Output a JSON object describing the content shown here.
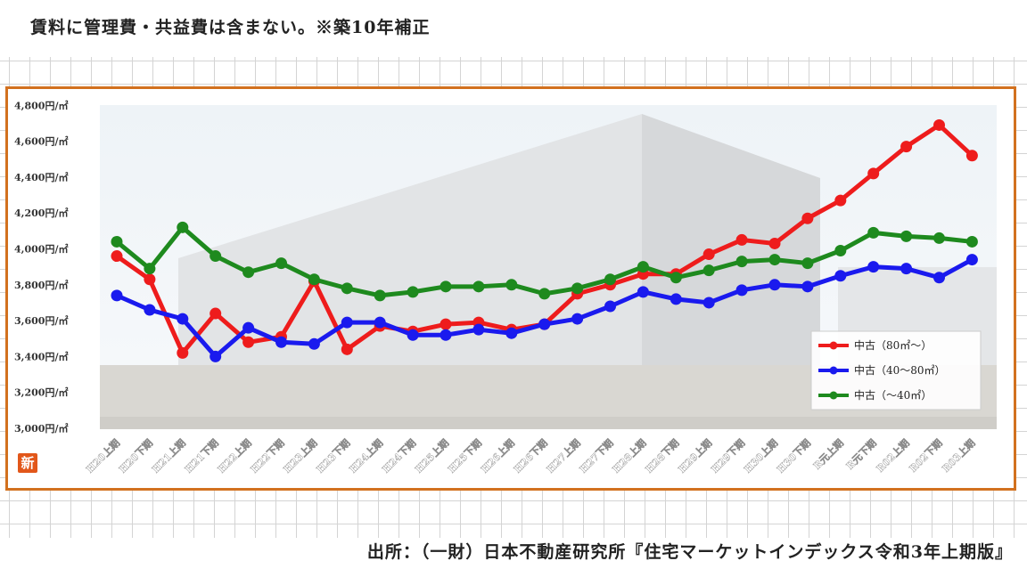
{
  "header": {
    "note": "賃料に管理費・共益費は含まない。※築10年補正"
  },
  "footer": {
    "source": "出所：（一財）日本不動産研究所『住宅マーケットインデックス令和3年上期版』"
  },
  "badge": {
    "label": "新",
    "color": "#e2571a"
  },
  "colors": {
    "frame": "#d2711f"
  },
  "chart_data": {
    "type": "line",
    "title": "",
    "xlabel": "",
    "ylabel": "",
    "ylim": [
      3000,
      4800
    ],
    "yticks": [
      3000,
      3200,
      3400,
      3600,
      3800,
      4000,
      4200,
      4400,
      4600,
      4800
    ],
    "ytick_labels": [
      "3,000円/㎡",
      "3,200円/㎡",
      "3,400円/㎡",
      "3,600円/㎡",
      "3,800円/㎡",
      "4,000円/㎡",
      "4,200円/㎡",
      "4,400円/㎡",
      "4,600円/㎡",
      "4,800円/㎡"
    ],
    "grid": false,
    "legend_position": "bottom-right",
    "categories": [
      "H20上期",
      "H20下期",
      "H21上期",
      "H21下期",
      "H22上期",
      "H22下期",
      "H23上期",
      "H23下期",
      "H24上期",
      "H24下期",
      "H25上期",
      "H25下期",
      "H26上期",
      "H26下期",
      "H27上期",
      "H27下期",
      "H28上期",
      "H28下期",
      "H29上期",
      "H29下期",
      "H30上期",
      "H30下期",
      "R元上期",
      "R元下期",
      "R02上期",
      "R02下期",
      "R03上期"
    ],
    "series": [
      {
        "name": "中古（80㎡～）",
        "color": "#ee1c1c",
        "values": [
          3960,
          3830,
          3420,
          3640,
          3480,
          3510,
          3820,
          3440,
          3570,
          3540,
          3580,
          3590,
          3550,
          3580,
          3750,
          3800,
          3860,
          3860,
          3970,
          4050,
          4030,
          4170,
          4270,
          4420,
          4570,
          4690,
          4520
        ]
      },
      {
        "name": "中古（40～80㎡）",
        "color": "#1a1aee",
        "values": [
          3740,
          3660,
          3610,
          3400,
          3560,
          3480,
          3470,
          3590,
          3590,
          3520,
          3520,
          3550,
          3530,
          3580,
          3610,
          3680,
          3760,
          3720,
          3700,
          3770,
          3800,
          3790,
          3850,
          3900,
          3890,
          3840,
          3940
        ]
      },
      {
        "name": "中古（～40㎡）",
        "color": "#1e8a1e",
        "values": [
          4040,
          3890,
          4120,
          3960,
          3870,
          3920,
          3830,
          3780,
          3740,
          3760,
          3790,
          3790,
          3800,
          3750,
          3780,
          3830,
          3900,
          3840,
          3880,
          3930,
          3940,
          3920,
          3990,
          4090,
          4070,
          4060,
          4040
        ]
      }
    ]
  }
}
